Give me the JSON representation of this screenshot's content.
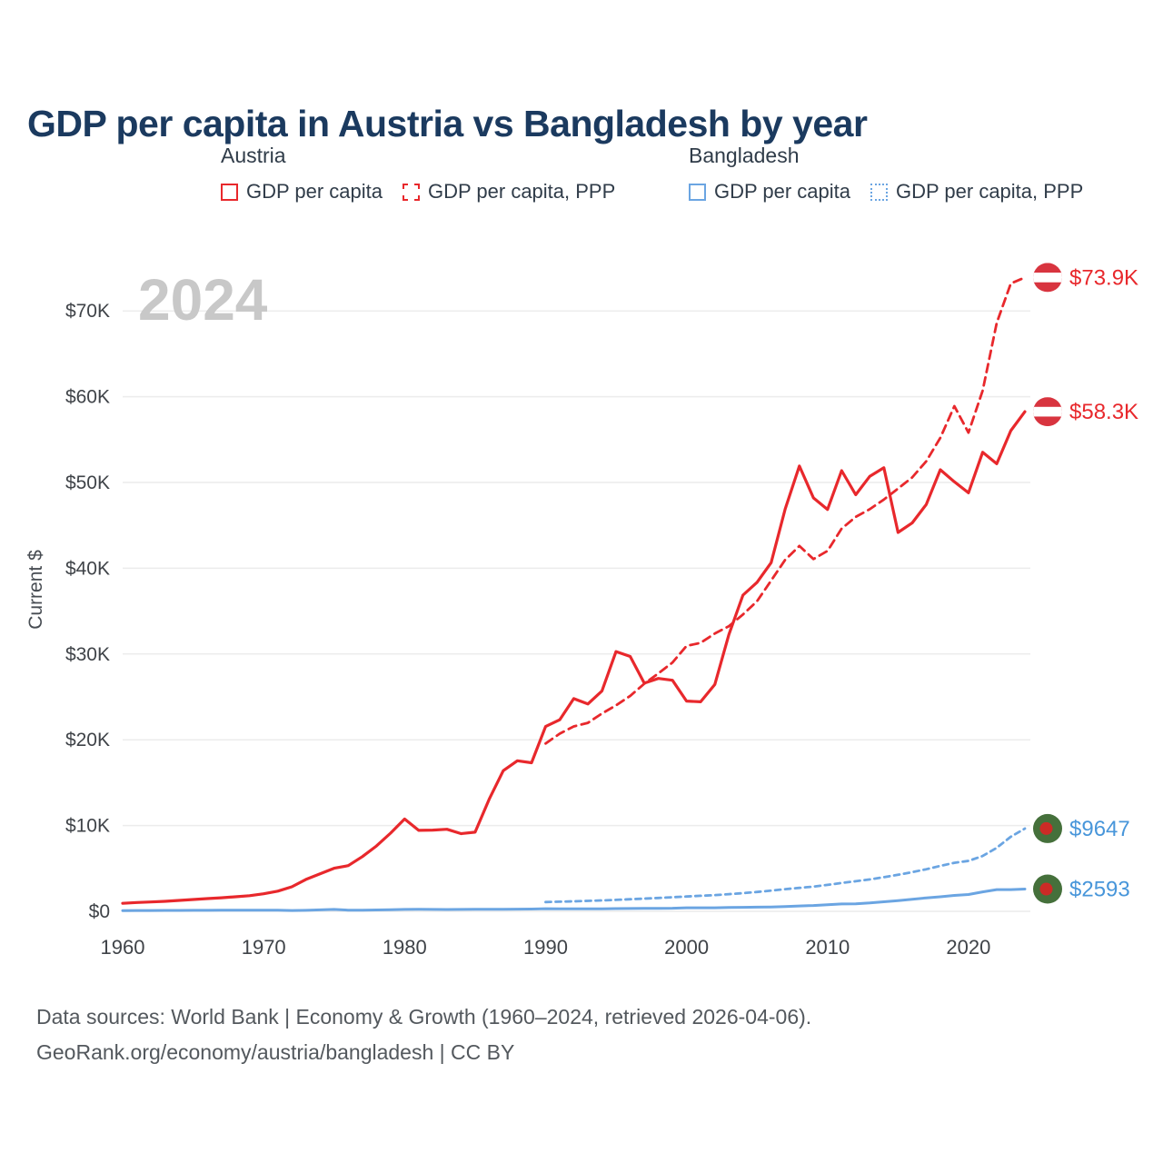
{
  "page": {
    "footer_line1": "Data sources: World Bank | Economy & Growth (1960–2024, retrieved 2026-04-06).",
    "footer_line2": "GeoRank.org/economy/austria/bangladesh | CC BY"
  },
  "legend": {
    "groups": [
      {
        "title": "Austria",
        "items": [
          {
            "label": "GDP per capita",
            "series": 0
          },
          {
            "label": "GDP per capita, PPP",
            "series": 1
          }
        ]
      },
      {
        "title": "Bangladesh",
        "items": [
          {
            "label": "GDP per capita",
            "series": 2
          },
          {
            "label": "GDP per capita, PPP",
            "series": 3
          }
        ]
      }
    ]
  },
  "chart_data": {
    "type": "line",
    "title": "GDP per capita in Austria vs Bangladesh by year",
    "ylabel": "Current $",
    "watermark": "2024",
    "xlim": [
      1960,
      2024
    ],
    "ylim": [
      0,
      75000
    ],
    "yticks": [
      0,
      10000,
      20000,
      30000,
      40000,
      50000,
      60000,
      70000
    ],
    "ytick_labels": [
      "$0",
      "$10K",
      "$20K",
      "$30K",
      "$40K",
      "$50K",
      "$60K",
      "$70K"
    ],
    "xticks": [
      1960,
      1970,
      1980,
      1990,
      2000,
      2010,
      2020
    ],
    "grid": true,
    "legend_position": "top",
    "series": [
      {
        "id": "austria-gdp",
        "name": "Austria GDP per capita",
        "color": "#e8282c",
        "label_color": "#e8282c",
        "dash": "solid",
        "width": 3.2,
        "flag": "austria",
        "end_label": "$58.3K",
        "start_year": 1960,
        "values": [
          935,
          1032,
          1088,
          1169,
          1269,
          1375,
          1487,
          1575,
          1690,
          1826,
          2042,
          2351,
          2856,
          3713,
          4362,
          5021,
          5329,
          6373,
          7616,
          9110,
          10766,
          9437,
          9468,
          9567,
          9060,
          9225,
          13076,
          16398,
          17549,
          17323,
          21551,
          22329,
          24801,
          24177,
          25685,
          30290,
          29709,
          26595,
          27154,
          26937,
          24517,
          24432,
          26442,
          32266,
          36866,
          38363,
          40648,
          46915,
          51919,
          48200,
          46858,
          51375,
          48568,
          50716,
          51717,
          44178,
          45276,
          47429,
          51479,
          50070,
          48789,
          53518,
          52178,
          56034,
          58250
        ]
      },
      {
        "id": "austria-gdp-ppp",
        "name": "Austria GDP per capita, PPP",
        "color": "#e8282c",
        "label_color": "#e8282c",
        "dash": "dashed",
        "width": 2.8,
        "flag": "austria",
        "end_label": "$73.9K",
        "start_year": 1990,
        "values": [
          19570,
          20712,
          21559,
          21974,
          23063,
          24012,
          25120,
          26540,
          27740,
          29000,
          30940,
          31300,
          32380,
          33240,
          34610,
          36150,
          38560,
          40980,
          42600,
          41070,
          42020,
          44620,
          45990,
          46890,
          48010,
          49290,
          50580,
          52470,
          55200,
          58900,
          55800,
          60700,
          68600,
          73200,
          73900
        ]
      },
      {
        "id": "bangladesh-gdp",
        "name": "Bangladesh GDP per capita",
        "color": "#6ba5e2",
        "label_color": "#4896da",
        "dash": "solid",
        "width": 3,
        "flag": "bangladesh",
        "end_label": "$2593",
        "start_year": 1960,
        "values": [
          89,
          95,
          99,
          102,
          107,
          112,
          117,
          123,
          128,
          134,
          140,
          129,
          91,
          113,
          166,
          225,
          136,
          128,
          158,
          180,
          220,
          237,
          221,
          208,
          221,
          234,
          237,
          244,
          251,
          262,
          306,
          286,
          288,
          292,
          295,
          318,
          333,
          342,
          350,
          357,
          418,
          415,
          417,
          440,
          468,
          492,
          510,
          551,
          630,
          683,
          776,
          856,
          880,
          976,
          1110,
          1236,
          1401,
          1564,
          1698,
          1856,
          1961,
          2270,
          2528,
          2529,
          2593
        ]
      },
      {
        "id": "bangladesh-gdp-ppp",
        "name": "Bangladesh GDP per capita, PPP",
        "color": "#6ba5e2",
        "label_color": "#4896da",
        "dash": "dashed",
        "width": 2.8,
        "flag": "bangladesh",
        "end_label": "$9647",
        "start_year": 1990,
        "values": [
          1080,
          1120,
          1170,
          1220,
          1270,
          1340,
          1410,
          1480,
          1560,
          1640,
          1730,
          1810,
          1890,
          2000,
          2120,
          2260,
          2420,
          2580,
          2730,
          2880,
          3080,
          3300,
          3510,
          3720,
          3980,
          4260,
          4570,
          4900,
          5300,
          5660,
          5880,
          6450,
          7400,
          8700,
          9647
        ]
      }
    ],
    "colors": {
      "title": "#1b3a5f",
      "austria_red": "#e8282c",
      "bangladesh_blue": "#6ba5e2",
      "watermark_gray": "#c8c8c8",
      "austria_flag_red": "#d8343f",
      "bangladesh_flag_green": "#45703b",
      "bangladesh_flag_red": "#cc2b26"
    }
  }
}
